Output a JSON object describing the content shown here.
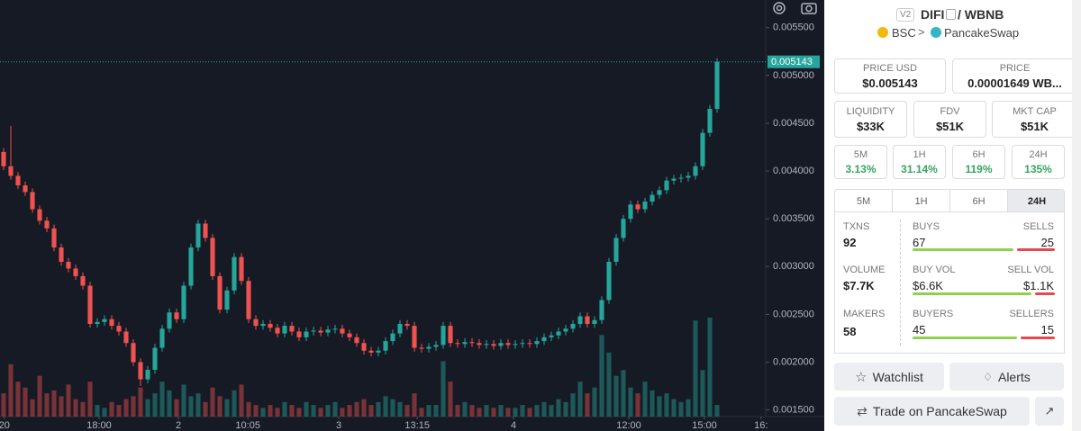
{
  "chart_data": {
    "type": "candlestick",
    "open": [
      0.0042,
      0.00405,
      0.00395,
      0.00385,
      0.00378,
      0.0036,
      0.00348,
      0.0034,
      0.0032,
      0.00305,
      0.00298,
      0.0029,
      0.0028,
      0.0024,
      0.00242,
      0.00245,
      0.00238,
      0.00232,
      0.0022,
      0.002,
      0.00182,
      0.00192,
      0.00215,
      0.00235,
      0.00252,
      0.00245,
      0.0028,
      0.0032,
      0.00345,
      0.0033,
      0.0029,
      0.00255,
      0.00275,
      0.0031,
      0.00285,
      0.00245,
      0.00238,
      0.0024,
      0.00236,
      0.0023,
      0.00238,
      0.00232,
      0.00226,
      0.00232,
      0.00233,
      0.00231,
      0.00234,
      0.00235,
      0.0023,
      0.00226,
      0.0022,
      0.00212,
      0.0021,
      0.00212,
      0.00222,
      0.0023,
      0.0024,
      0.00238,
      0.00215,
      0.00214,
      0.00216,
      0.00218,
      0.00238,
      0.0022,
      0.00219,
      0.00221,
      0.0022,
      0.00218,
      0.00219,
      0.00217,
      0.0022,
      0.00218,
      0.00219,
      0.0022,
      0.00219,
      0.00222,
      0.00226,
      0.00228,
      0.00232,
      0.00235,
      0.0024,
      0.00248,
      0.0024,
      0.00244,
      0.00265,
      0.00305,
      0.0033,
      0.0035,
      0.00365,
      0.0036,
      0.00368,
      0.00375,
      0.0038,
      0.0039,
      0.00392,
      0.00393,
      0.00395,
      0.00405,
      0.0044,
      0.00465
    ],
    "high": [
      0.00424,
      0.00447,
      0.00399,
      0.00389,
      0.00382,
      0.00364,
      0.00352,
      0.00344,
      0.00324,
      0.00309,
      0.00302,
      0.00294,
      0.00284,
      0.00246,
      0.00249,
      0.00249,
      0.00242,
      0.00236,
      0.00224,
      0.00204,
      0.00196,
      0.00219,
      0.00239,
      0.00256,
      0.00256,
      0.00284,
      0.00324,
      0.00349,
      0.00349,
      0.00334,
      0.00294,
      0.00279,
      0.00314,
      0.00314,
      0.00289,
      0.00249,
      0.00244,
      0.00244,
      0.0024,
      0.00242,
      0.00242,
      0.00236,
      0.00236,
      0.00237,
      0.00237,
      0.00238,
      0.00239,
      0.00239,
      0.00234,
      0.0023,
      0.00224,
      0.00216,
      0.00216,
      0.00226,
      0.00234,
      0.00244,
      0.00244,
      0.00242,
      0.00219,
      0.0022,
      0.00222,
      0.00242,
      0.00242,
      0.00224,
      0.00225,
      0.00225,
      0.00224,
      0.00223,
      0.00223,
      0.00224,
      0.00224,
      0.00223,
      0.00224,
      0.00224,
      0.00226,
      0.0023,
      0.00232,
      0.00236,
      0.00239,
      0.00244,
      0.00252,
      0.00252,
      0.00248,
      0.00269,
      0.00309,
      0.00334,
      0.00354,
      0.00369,
      0.00369,
      0.00372,
      0.00379,
      0.00384,
      0.00394,
      0.00396,
      0.00397,
      0.00399,
      0.00409,
      0.00444,
      0.00469,
      0.00518
    ],
    "low": [
      0.00401,
      0.00391,
      0.00381,
      0.00374,
      0.00356,
      0.00344,
      0.00336,
      0.00316,
      0.00301,
      0.00294,
      0.00286,
      0.00276,
      0.00236,
      0.00236,
      0.00238,
      0.00234,
      0.00228,
      0.00216,
      0.00196,
      0.00175,
      0.00178,
      0.00188,
      0.00211,
      0.00231,
      0.00241,
      0.00241,
      0.00276,
      0.00316,
      0.00326,
      0.00286,
      0.00251,
      0.00251,
      0.00271,
      0.00281,
      0.00241,
      0.00234,
      0.00234,
      0.00232,
      0.00226,
      0.00226,
      0.00228,
      0.00222,
      0.00222,
      0.00228,
      0.00227,
      0.00227,
      0.0023,
      0.00226,
      0.00222,
      0.00216,
      0.00208,
      0.00206,
      0.00206,
      0.00208,
      0.00218,
      0.00226,
      0.00234,
      0.00211,
      0.0021,
      0.0021,
      0.00212,
      0.00214,
      0.00216,
      0.00215,
      0.00215,
      0.00216,
      0.00214,
      0.00214,
      0.00213,
      0.00213,
      0.00214,
      0.00214,
      0.00215,
      0.00215,
      0.00215,
      0.00218,
      0.00222,
      0.00224,
      0.00228,
      0.00231,
      0.00236,
      0.00236,
      0.00236,
      0.0024,
      0.00261,
      0.00301,
      0.00326,
      0.00346,
      0.00356,
      0.00356,
      0.00364,
      0.00371,
      0.00376,
      0.00386,
      0.00388,
      0.00389,
      0.00391,
      0.00401,
      0.00436,
      0.00461
    ],
    "close": [
      0.00405,
      0.00395,
      0.00385,
      0.00378,
      0.0036,
      0.00348,
      0.0034,
      0.0032,
      0.00305,
      0.00298,
      0.0029,
      0.0028,
      0.0024,
      0.00242,
      0.00245,
      0.00238,
      0.00232,
      0.0022,
      0.002,
      0.00182,
      0.00192,
      0.00215,
      0.00235,
      0.00252,
      0.00245,
      0.0028,
      0.0032,
      0.00345,
      0.0033,
      0.0029,
      0.00255,
      0.00275,
      0.0031,
      0.00285,
      0.00245,
      0.00238,
      0.0024,
      0.00236,
      0.0023,
      0.00238,
      0.00232,
      0.00226,
      0.00232,
      0.00233,
      0.00231,
      0.00234,
      0.00235,
      0.0023,
      0.00226,
      0.0022,
      0.00212,
      0.0021,
      0.00212,
      0.00222,
      0.0023,
      0.0024,
      0.00238,
      0.00215,
      0.00214,
      0.00216,
      0.00218,
      0.00238,
      0.0022,
      0.00219,
      0.00221,
      0.0022,
      0.00218,
      0.00219,
      0.00217,
      0.0022,
      0.00218,
      0.00219,
      0.0022,
      0.00219,
      0.00222,
      0.00226,
      0.00228,
      0.00232,
      0.00235,
      0.0024,
      0.00248,
      0.0024,
      0.00244,
      0.00265,
      0.00305,
      0.0033,
      0.0035,
      0.00365,
      0.0036,
      0.00368,
      0.00375,
      0.0038,
      0.0039,
      0.00392,
      0.00393,
      0.00395,
      0.00405,
      0.0044,
      0.00465,
      0.005143
    ],
    "volume": [
      40,
      90,
      60,
      50,
      30,
      70,
      40,
      45,
      35,
      55,
      30,
      25,
      60,
      20,
      15,
      25,
      20,
      30,
      35,
      50,
      30,
      40,
      60,
      45,
      30,
      55,
      35,
      40,
      25,
      50,
      35,
      30,
      45,
      55,
      25,
      20,
      15,
      20,
      15,
      25,
      20,
      15,
      25,
      20,
      15,
      20,
      25,
      15,
      20,
      25,
      30,
      20,
      25,
      35,
      30,
      25,
      20,
      40,
      15,
      20,
      20,
      95,
      60,
      20,
      25,
      20,
      15,
      20,
      15,
      20,
      15,
      15,
      20,
      15,
      20,
      25,
      20,
      30,
      25,
      40,
      60,
      40,
      50,
      140,
      110,
      70,
      80,
      50,
      40,
      60,
      45,
      35,
      40,
      30,
      25,
      30,
      165,
      80,
      170,
      20
    ],
    "ylim": [
      0.00143,
      0.00579
    ],
    "yticks": [
      {
        "value": 0.0015,
        "label": "0.001500"
      },
      {
        "value": 0.002,
        "label": "0.002000"
      },
      {
        "value": 0.0025,
        "label": "0.002500"
      },
      {
        "value": 0.003,
        "label": "0.003000"
      },
      {
        "value": 0.0035,
        "label": "0.003500"
      },
      {
        "value": 0.004,
        "label": "0.004000"
      },
      {
        "value": 0.0045,
        "label": "0.004500"
      },
      {
        "value": 0.005,
        "label": "0.005000"
      },
      {
        "value": 0.0055,
        "label": "0.005500"
      }
    ],
    "xlim": [
      -0.5,
      105.75
    ],
    "xticks": [
      {
        "value": 0.1,
        "label": "20"
      },
      {
        "value": 13.25,
        "label": "18:00"
      },
      {
        "value": 24.25,
        "label": "2"
      },
      {
        "value": 33.9,
        "label": "10:05"
      },
      {
        "value": 46.5,
        "label": "3"
      },
      {
        "value": 57.4,
        "label": "13:15"
      },
      {
        "value": 70.75,
        "label": "4"
      },
      {
        "value": 86.75,
        "label": "12:00"
      },
      {
        "value": 97.25,
        "label": "15:00"
      },
      {
        "value": 105.1,
        "label": "16:"
      }
    ],
    "last_price": 0.005143,
    "up_color": "#26a69a",
    "down_color": "#ef5350"
  },
  "pair": {
    "version": "V2",
    "base": "DIFI",
    "quote": "/ WBNB",
    "chain": "BSC",
    "dex": "PancakeSwap"
  },
  "stats": {
    "price_usd": {
      "title": "PRICE USD",
      "label": "$0.005143"
    },
    "price": {
      "title": "PRICE",
      "label": "0.00001649 WB..."
    },
    "liquidity": {
      "title": "LIQUIDITY",
      "label": "$33K"
    },
    "fdv": {
      "title": "FDV",
      "label": "$51K"
    },
    "mkt_cap": {
      "title": "MKT CAP",
      "label": "$51K"
    }
  },
  "changes": [
    {
      "title": "5M",
      "label": "3.13%"
    },
    {
      "title": "1H",
      "label": "31.14%"
    },
    {
      "title": "6H",
      "label": "119%"
    },
    {
      "title": "24H",
      "label": "135%"
    }
  ],
  "tabs": [
    "5M",
    "1H",
    "6H",
    "24H"
  ],
  "active_tab": 3,
  "activity": {
    "txns": {
      "title": "TXNS",
      "value": 92
    },
    "buys": {
      "title": "BUYS",
      "value": 67
    },
    "sells": {
      "title": "SELLS",
      "value": 25
    },
    "volume": {
      "title": "VOLUME",
      "value": 7700,
      "label": "$7.7K"
    },
    "buy_vol": {
      "title": "BUY VOL",
      "value": 6600,
      "label": "$6.6K"
    },
    "sell_vol": {
      "title": "SELL VOL",
      "value": 1100,
      "label": "$1.1K"
    },
    "makers": {
      "title": "MAKERS",
      "value": 58
    },
    "buyers": {
      "title": "BUYERS",
      "value": 45
    },
    "sellers": {
      "title": "SELLERS",
      "value": 15
    }
  },
  "buttons": {
    "watchlist": "Watchlist",
    "alerts": "Alerts",
    "trade": "Trade on PancakeSwap"
  }
}
